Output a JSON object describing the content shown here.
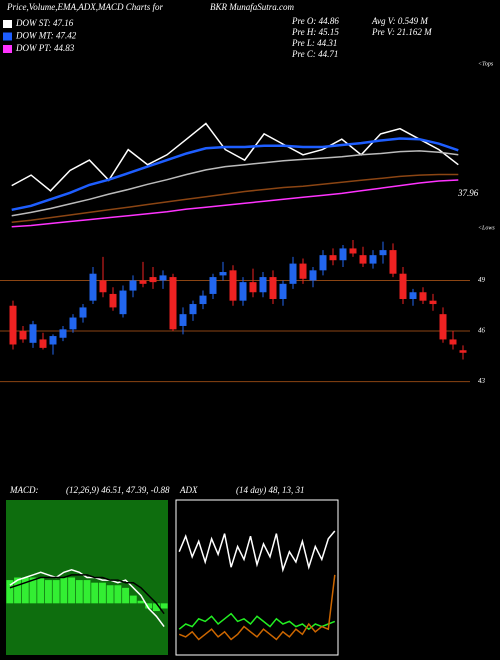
{
  "header": {
    "title": "Price,Volume,EMA,ADX,MACD Charts for",
    "symbol": "BKR MunafaSutra.com",
    "legend": [
      {
        "label": "DOW ST: 47.16",
        "color": "#ffffff"
      },
      {
        "label": "DOW MT: 47.42",
        "color": "#1e5eff"
      },
      {
        "label": "DOW PT: 44.83",
        "color": "#ff33ff"
      }
    ],
    "stats": [
      "Pre O: 44.86",
      "Pre H: 45.15",
      "Pre L: 44.31",
      "Pre C: 44.71"
    ],
    "volume": [
      "Avg V: 0.549 M",
      "Pre V: 21.162 M"
    ]
  },
  "chart_data": [
    {
      "type": "line",
      "ylim": [
        30,
        56
      ],
      "annotations": [
        "<Tops",
        "<Lows"
      ],
      "label_last": true,
      "series": [
        {
          "color": "#ffffff",
          "values": [
            37.1,
            38.7,
            36.3,
            39.4,
            41.0,
            37.9,
            42.6,
            40.3,
            41.8,
            44.2,
            46.6,
            42.6,
            41.0,
            45.0,
            43.4,
            41.8,
            42.6,
            44.2,
            41.8,
            45.0,
            45.8,
            44.2,
            42.6,
            40.3
          ]
        },
        {
          "color": "#1e5eff",
          "values": [
            33.4,
            34.0,
            35.0,
            36.0,
            37.2,
            38.0,
            39.0,
            40.0,
            41.0,
            42.0,
            42.8,
            43.0,
            43.0,
            43.2,
            43.2,
            43.0,
            43.0,
            43.3,
            43.6,
            44.0,
            44.3,
            44.2,
            43.5,
            42.5
          ]
        },
        {
          "color": "#bbbbbb",
          "values": [
            32.5,
            33.0,
            33.6,
            34.3,
            35.0,
            35.8,
            36.5,
            37.3,
            38.0,
            38.8,
            39.5,
            40.0,
            40.3,
            40.6,
            40.9,
            41.1,
            41.3,
            41.5,
            41.8,
            42.0,
            42.3,
            42.4,
            42.2,
            41.8
          ]
        },
        {
          "color": "#8b4513",
          "values": [
            31.5,
            31.8,
            32.2,
            32.6,
            33.0,
            33.4,
            33.8,
            34.2,
            34.6,
            35.0,
            35.4,
            35.8,
            36.2,
            36.5,
            36.8,
            37.0,
            37.3,
            37.6,
            37.9,
            38.2,
            38.5,
            38.7,
            38.8,
            38.8
          ]
        },
        {
          "color": "#ff33ff",
          "values": [
            30.8,
            31.0,
            31.3,
            31.6,
            31.9,
            32.2,
            32.5,
            32.8,
            33.1,
            33.5,
            33.8,
            34.1,
            34.4,
            34.7,
            35.0,
            35.3,
            35.6,
            35.9,
            36.3,
            36.7,
            37.1,
            37.5,
            37.8,
            37.96
          ]
        }
      ]
    },
    {
      "type": "candlestick",
      "ylim": [
        42.5,
        51.4
      ],
      "yticks": [
        43,
        46,
        49
      ],
      "grid": true,
      "grid_color": "#8b4513",
      "up_color": "#2266ee",
      "down_color": "#ee2222",
      "open": [
        47.5,
        46.0,
        45.3,
        45.5,
        45.2,
        45.6,
        46.1,
        46.8,
        47.8,
        49.0,
        48.2,
        47.0,
        48.4,
        49.0,
        49.2,
        49.0,
        49.2,
        46.3,
        47.0,
        47.6,
        48.2,
        49.3,
        49.6,
        47.8,
        48.9,
        48.3,
        49.2,
        47.9,
        48.8,
        50.0,
        49.0,
        49.6,
        50.5,
        50.2,
        50.9,
        50.5,
        50.0,
        50.5,
        50.8,
        49.4,
        47.9,
        48.3,
        47.8,
        47.0,
        45.5,
        44.86
      ],
      "high": [
        47.8,
        46.3,
        46.6,
        45.9,
        45.8,
        46.3,
        47.0,
        47.6,
        49.8,
        50.4,
        48.6,
        48.7,
        49.3,
        50.1,
        49.8,
        49.6,
        49.4,
        47.4,
        47.8,
        48.4,
        49.4,
        50.1,
        49.9,
        49.2,
        49.7,
        49.5,
        49.6,
        49.0,
        50.4,
        50.3,
        49.8,
        50.8,
        50.9,
        51.1,
        51.4,
        51.0,
        50.8,
        51.3,
        51.2,
        49.8,
        48.5,
        48.6,
        48.2,
        47.4,
        46.0,
        45.15
      ],
      "low": [
        44.9,
        45.3,
        45.0,
        44.9,
        44.6,
        45.4,
        45.9,
        46.5,
        47.6,
        48.0,
        47.2,
        46.8,
        48.0,
        48.6,
        48.5,
        48.5,
        46.0,
        45.8,
        46.6,
        47.3,
        47.9,
        49.0,
        47.5,
        47.5,
        48.0,
        48.0,
        47.6,
        47.5,
        48.5,
        48.8,
        48.6,
        49.3,
        49.9,
        49.8,
        50.4,
        49.8,
        49.7,
        50.0,
        49.2,
        47.6,
        47.5,
        47.6,
        47.2,
        45.3,
        44.9,
        44.31
      ],
      "close": [
        45.2,
        45.5,
        46.4,
        45.0,
        45.7,
        46.1,
        46.8,
        47.4,
        49.4,
        48.3,
        47.4,
        48.4,
        49.0,
        48.8,
        48.9,
        49.3,
        46.1,
        47.0,
        47.6,
        48.1,
        49.2,
        49.5,
        47.8,
        48.9,
        48.3,
        49.2,
        47.9,
        48.8,
        50.0,
        49.1,
        49.6,
        50.5,
        50.2,
        50.9,
        50.6,
        50.0,
        50.5,
        50.8,
        49.4,
        47.9,
        48.3,
        47.8,
        47.6,
        45.5,
        45.2,
        44.71
      ]
    },
    {
      "type": "line",
      "title": "MACD:",
      "subtitle": "(12,26,9) 46.51, 47.39, -0.88",
      "ylim": [
        -2,
        4
      ],
      "series": [
        {
          "kind": "bar",
          "color": "#33ee33",
          "values": [
            0.9,
            1.0,
            1.0,
            1.0,
            1.0,
            0.9,
            0.9,
            1.0,
            1.0,
            0.9,
            0.9,
            0.8,
            0.8,
            0.7,
            0.7,
            0.6,
            0.3,
            0.1,
            -0.2,
            -0.3,
            -0.2
          ]
        },
        {
          "color": "#ffffff",
          "values": [
            0.7,
            0.9,
            1.0,
            1.1,
            1.2,
            1.1,
            1.0,
            1.2,
            1.3,
            1.2,
            1.0,
            1.0,
            0.9,
            0.9,
            0.8,
            0.9,
            0.6,
            0.3,
            -0.2,
            -0.5,
            -0.9
          ]
        },
        {
          "color": "#000000",
          "values": [
            0.6,
            0.7,
            0.8,
            0.9,
            1.0,
            1.0,
            1.0,
            1.0,
            1.1,
            1.1,
            1.1,
            1.0,
            1.0,
            0.9,
            0.9,
            0.8,
            0.8,
            0.6,
            0.3,
            0.0,
            -0.4
          ]
        }
      ]
    },
    {
      "type": "line",
      "title": "ADX",
      "subtitle": "(14 day) 48, 13, 31",
      "ylim": [
        0,
        60
      ],
      "series": [
        {
          "color": "#ffffff",
          "values": [
            40,
            46,
            38,
            44,
            36,
            45,
            39,
            47,
            34,
            42,
            37,
            46,
            35,
            43,
            38,
            47,
            33,
            40,
            36,
            44,
            34,
            42,
            37,
            45,
            48
          ]
        },
        {
          "color": "#22ee22",
          "values": [
            10,
            12,
            11,
            14,
            13,
            15,
            12,
            14,
            16,
            13,
            14,
            12,
            15,
            13,
            11,
            14,
            12,
            13,
            11,
            12,
            10,
            12,
            11,
            12,
            13
          ]
        },
        {
          "color": "#cc6600",
          "values": [
            8,
            7,
            9,
            6,
            8,
            10,
            7,
            9,
            6,
            8,
            11,
            9,
            7,
            10,
            8,
            6,
            9,
            7,
            10,
            8,
            12,
            9,
            11,
            10,
            31
          ]
        }
      ]
    }
  ]
}
